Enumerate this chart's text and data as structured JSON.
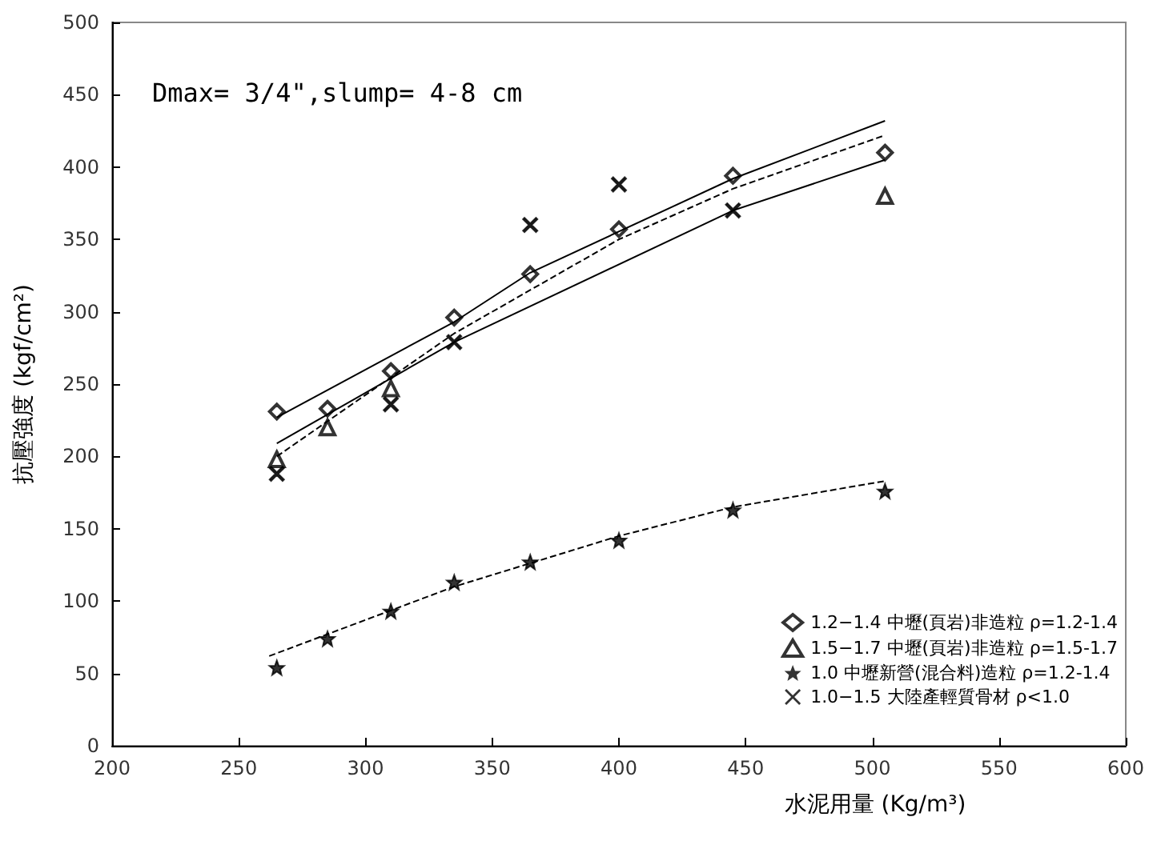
{
  "chart_data": {
    "type": "scatter",
    "xlabel": "水泥用量 (Kg/m³)",
    "ylabel": "抗壓強度 (kgf/cm²)",
    "annotations": [
      "Dmax= 3/4\",slump= 4-8 cm"
    ],
    "xlim": [
      200,
      600
    ],
    "xticks": [
      200,
      250,
      300,
      350,
      400,
      450,
      500,
      550,
      600
    ],
    "ylim": [
      0,
      500
    ],
    "yticks": [
      0,
      50,
      100,
      150,
      200,
      250,
      300,
      350,
      400,
      450,
      500
    ],
    "grid": false,
    "legend": "bottom right",
    "x": [
      265,
      285,
      310,
      335,
      365,
      400,
      445,
      505
    ],
    "series": [
      {
        "name": "1.2−1.4 中壢(頁岩)非造粒 ρ=1.2-1.4",
        "marker": "diamond",
        "color": "#000000",
        "values": [
          231,
          233,
          259,
          296,
          326,
          357,
          394,
          410
        ]
      },
      {
        "name": "1.5−1.7 中壢(頁岩)非造粒 ρ=1.5-1.7",
        "marker": "triangle",
        "color": "#000000",
        "values": [
          198,
          220,
          247,
          null,
          null,
          null,
          null,
          380
        ]
      },
      {
        "name": "1.0 中壢新營(混合料)造粒 ρ=1.2-1.4",
        "marker": "star",
        "color": "#000000",
        "values": [
          54,
          74,
          93,
          113,
          127,
          142,
          163,
          176
        ]
      },
      {
        "name": "1.0−1.5 大陸產輕質骨材 ρ<1.0",
        "marker": "cross",
        "color": "#000000",
        "values": [
          188,
          null,
          236,
          279,
          360,
          388,
          370,
          null
        ]
      },
      {
        "type": "line",
        "marker": "none",
        "line_style": "solid",
        "color": "#000000",
        "x": [
          265,
          335,
          365,
          445,
          505
        ],
        "values": [
          227,
          293,
          327,
          392,
          432
        ]
      },
      {
        "type": "line",
        "marker": "none",
        "line_style": "solid",
        "color": "#000000",
        "x": [
          265,
          335,
          445,
          505
        ],
        "values": [
          209,
          279,
          370,
          405
        ]
      },
      {
        "type": "line",
        "marker": "none",
        "line_style": "dashed",
        "color": "#000000",
        "x": [
          265,
          335,
          400,
          445,
          505
        ],
        "values": [
          200,
          285,
          350,
          385,
          422
        ]
      },
      {
        "type": "line",
        "marker": "none",
        "line_style": "dashed",
        "color": "#000000",
        "x": [
          262,
          335,
          400,
          445,
          505
        ],
        "values": [
          62,
          110,
          145,
          165,
          183
        ]
      }
    ]
  }
}
